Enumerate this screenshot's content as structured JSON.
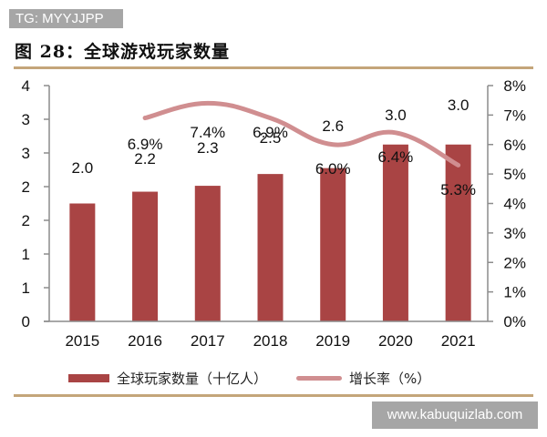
{
  "watermark_top": "TG: MYYJJPP",
  "watermark_bottom": "www.kabuquizlab.com",
  "figure_title": "图 28：全球游戏玩家数量",
  "legend": {
    "bar_label": "全球玩家数量（十亿人）",
    "line_label": "增长率（%）"
  },
  "colors": {
    "bar": "#a94444",
    "line": "#d08e90",
    "divider": "#c4a57a"
  },
  "axes": {
    "left_ticks": [
      "4",
      "3",
      "3",
      "2",
      "2",
      "1",
      "1",
      "0"
    ],
    "right_ticks": [
      "8%",
      "7%",
      "6%",
      "5%",
      "4%",
      "3%",
      "2%",
      "1%",
      "0%"
    ],
    "x_ticks": [
      "2015",
      "2016",
      "2017",
      "2018",
      "2019",
      "2020",
      "2021"
    ]
  },
  "chart_data": {
    "type": "bar",
    "title": "图 28：全球游戏玩家数量",
    "categories": [
      "2015",
      "2016",
      "2017",
      "2018",
      "2019",
      "2020",
      "2021"
    ],
    "series": [
      {
        "name": "全球玩家数量（十亿人）",
        "type": "bar",
        "axis": "left",
        "values": [
          2.0,
          2.2,
          2.3,
          2.5,
          2.6,
          3.0,
          3.0
        ],
        "labels": [
          "2.0",
          "2.2",
          "2.3",
          "2.5",
          "2.6",
          "3.0",
          "3.0"
        ]
      },
      {
        "name": "增长率（%）",
        "type": "line",
        "axis": "right",
        "values": [
          null,
          6.9,
          7.4,
          6.9,
          6.0,
          6.4,
          5.3
        ],
        "labels": [
          "",
          "6.9%",
          "7.4%",
          "6.9%",
          "6.0%",
          "6.4%",
          "5.3%"
        ]
      }
    ],
    "xlabel": "",
    "ylabel_left": "",
    "ylabel_right": "",
    "ylim_left": [
      0,
      4
    ],
    "ylim_right": [
      0,
      8
    ],
    "left_tick_labels": [
      "0",
      "1",
      "1",
      "2",
      "2",
      "3",
      "3",
      "4"
    ],
    "right_tick_labels": [
      "0%",
      "1%",
      "2%",
      "3%",
      "4%",
      "5%",
      "6%",
      "7%",
      "8%"
    ],
    "grid": false,
    "legend_position": "bottom"
  }
}
